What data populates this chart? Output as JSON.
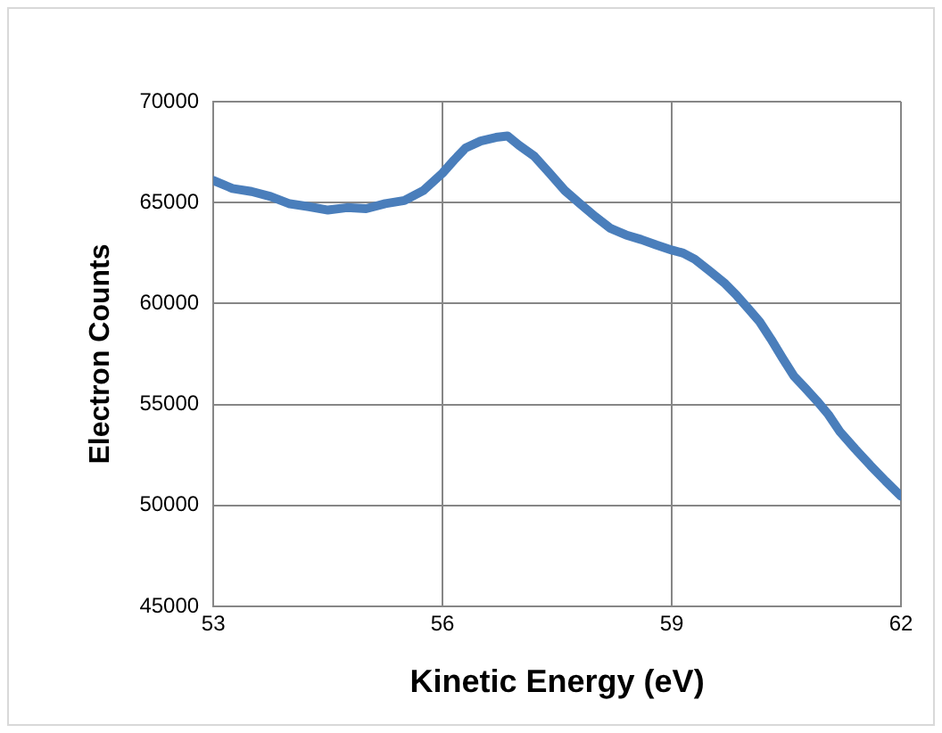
{
  "chart_data": {
    "type": "line",
    "xlabel": "Kinetic Energy (eV)",
    "ylabel": "Electron Counts",
    "x": [
      53,
      53.25,
      53.5,
      53.75,
      54,
      54.25,
      54.5,
      54.75,
      55,
      55.25,
      55.5,
      55.75,
      56,
      56.15,
      56.3,
      56.5,
      56.7,
      56.85,
      57,
      57.2,
      57.4,
      57.6,
      57.8,
      58,
      58.2,
      58.4,
      58.6,
      58.8,
      59,
      59.15,
      59.3,
      59.5,
      59.7,
      59.85,
      60,
      60.15,
      60.3,
      60.45,
      60.6,
      60.75,
      60.9,
      61.05,
      61.2,
      61.4,
      61.6,
      61.8,
      62
    ],
    "series": [
      {
        "color": "#4a7ebb",
        "values": [
          66100,
          65700,
          65550,
          65300,
          64940,
          64800,
          64630,
          64750,
          64700,
          64950,
          65100,
          65600,
          66460,
          67100,
          67700,
          68050,
          68230,
          68300,
          67840,
          67300,
          66460,
          65600,
          64940,
          64300,
          63720,
          63400,
          63170,
          62900,
          62650,
          62500,
          62200,
          61600,
          60980,
          60400,
          59760,
          59100,
          58230,
          57300,
          56400,
          55800,
          55180,
          54500,
          53660,
          52800,
          51980,
          51200,
          50460
        ]
      }
    ],
    "xlim": [
      53,
      62
    ],
    "xticks": [
      53,
      56,
      59,
      62
    ],
    "ylim": [
      45000,
      70000
    ],
    "yticks": [
      45000,
      50000,
      55000,
      60000,
      65000,
      70000
    ],
    "grid": true,
    "legend": false,
    "marker": "none",
    "line_style": "solid"
  }
}
